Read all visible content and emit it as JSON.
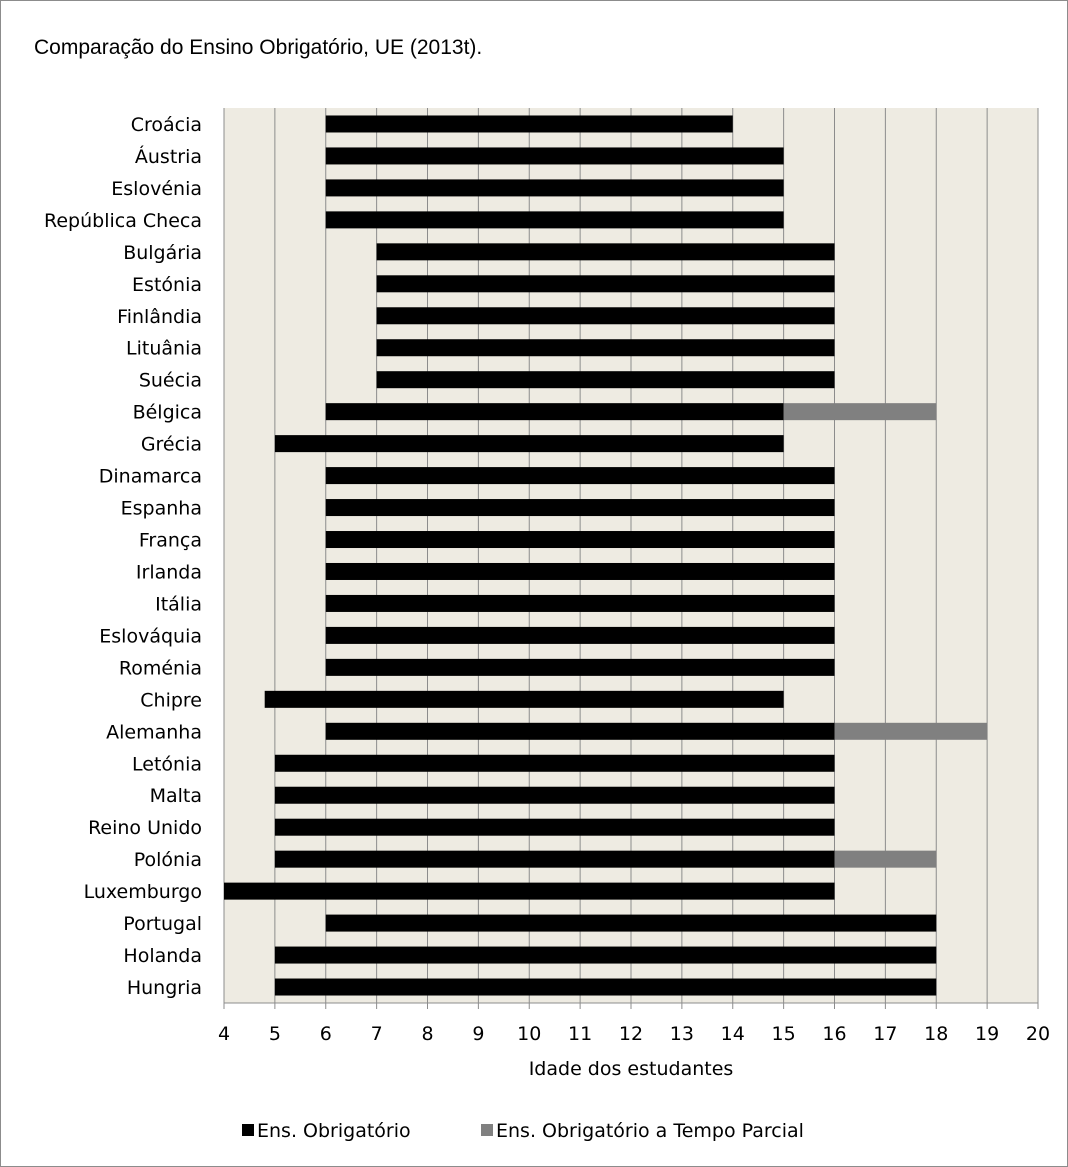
{
  "chart_data": {
    "type": "bar",
    "orientation": "horizontal",
    "stacked": true,
    "title": "Comparação do Ensino Obrigatório, UE (2013t).",
    "xlabel": "Idade dos estudantes",
    "ylabel": "",
    "xlim": [
      4,
      20
    ],
    "xticks": [
      "4",
      "5",
      "6",
      "7",
      "8",
      "9",
      "10",
      "11",
      "12",
      "13",
      "14",
      "15",
      "16",
      "17",
      "18",
      "19",
      "20"
    ],
    "grid": "vertical",
    "legend_position": "bottom",
    "categories": [
      "Croácia",
      "Áustria",
      "Eslovénia",
      "República Checa",
      "Bulgária",
      "Estónia",
      "Finlândia",
      "Lituânia",
      "Suécia",
      "Bélgica",
      "Grécia",
      "Dinamarca",
      "Espanha",
      "França",
      "Irlanda",
      "Itália",
      "Eslováquia",
      "Roménia",
      "Chipre",
      "Alemanha",
      "Letónia",
      "Malta",
      "Reino Unido",
      "Polónia",
      "Luxemburgo",
      "Portugal",
      "Holanda",
      "Hungria"
    ],
    "series": [
      {
        "name": "Ens. Obrigatório",
        "color": "#000000",
        "ranges": [
          [
            6,
            14
          ],
          [
            6,
            15
          ],
          [
            6,
            15
          ],
          [
            6,
            15
          ],
          [
            7,
            16
          ],
          [
            7,
            16
          ],
          [
            7,
            16
          ],
          [
            7,
            16
          ],
          [
            7,
            16
          ],
          [
            6,
            15
          ],
          [
            5,
            15
          ],
          [
            6,
            16
          ],
          [
            6,
            16
          ],
          [
            6,
            16
          ],
          [
            6,
            16
          ],
          [
            6,
            16
          ],
          [
            6,
            16
          ],
          [
            6,
            16
          ],
          [
            4.8,
            15
          ],
          [
            6,
            16
          ],
          [
            5,
            16
          ],
          [
            5,
            16
          ],
          [
            5,
            16
          ],
          [
            5,
            16
          ],
          [
            4,
            16
          ],
          [
            6,
            18
          ],
          [
            5,
            18
          ],
          [
            5,
            18
          ]
        ]
      },
      {
        "name": "Ens. Obrigatório a Tempo Parcial",
        "color": "#808080",
        "ranges": [
          null,
          null,
          null,
          null,
          null,
          null,
          null,
          null,
          null,
          [
            15,
            18
          ],
          null,
          null,
          null,
          null,
          null,
          null,
          null,
          null,
          null,
          [
            16,
            19
          ],
          null,
          null,
          null,
          [
            16,
            18
          ],
          null,
          null,
          null,
          null
        ]
      }
    ],
    "plot_background": "#eeebe2",
    "gridline_color": "#8c8c8c"
  }
}
